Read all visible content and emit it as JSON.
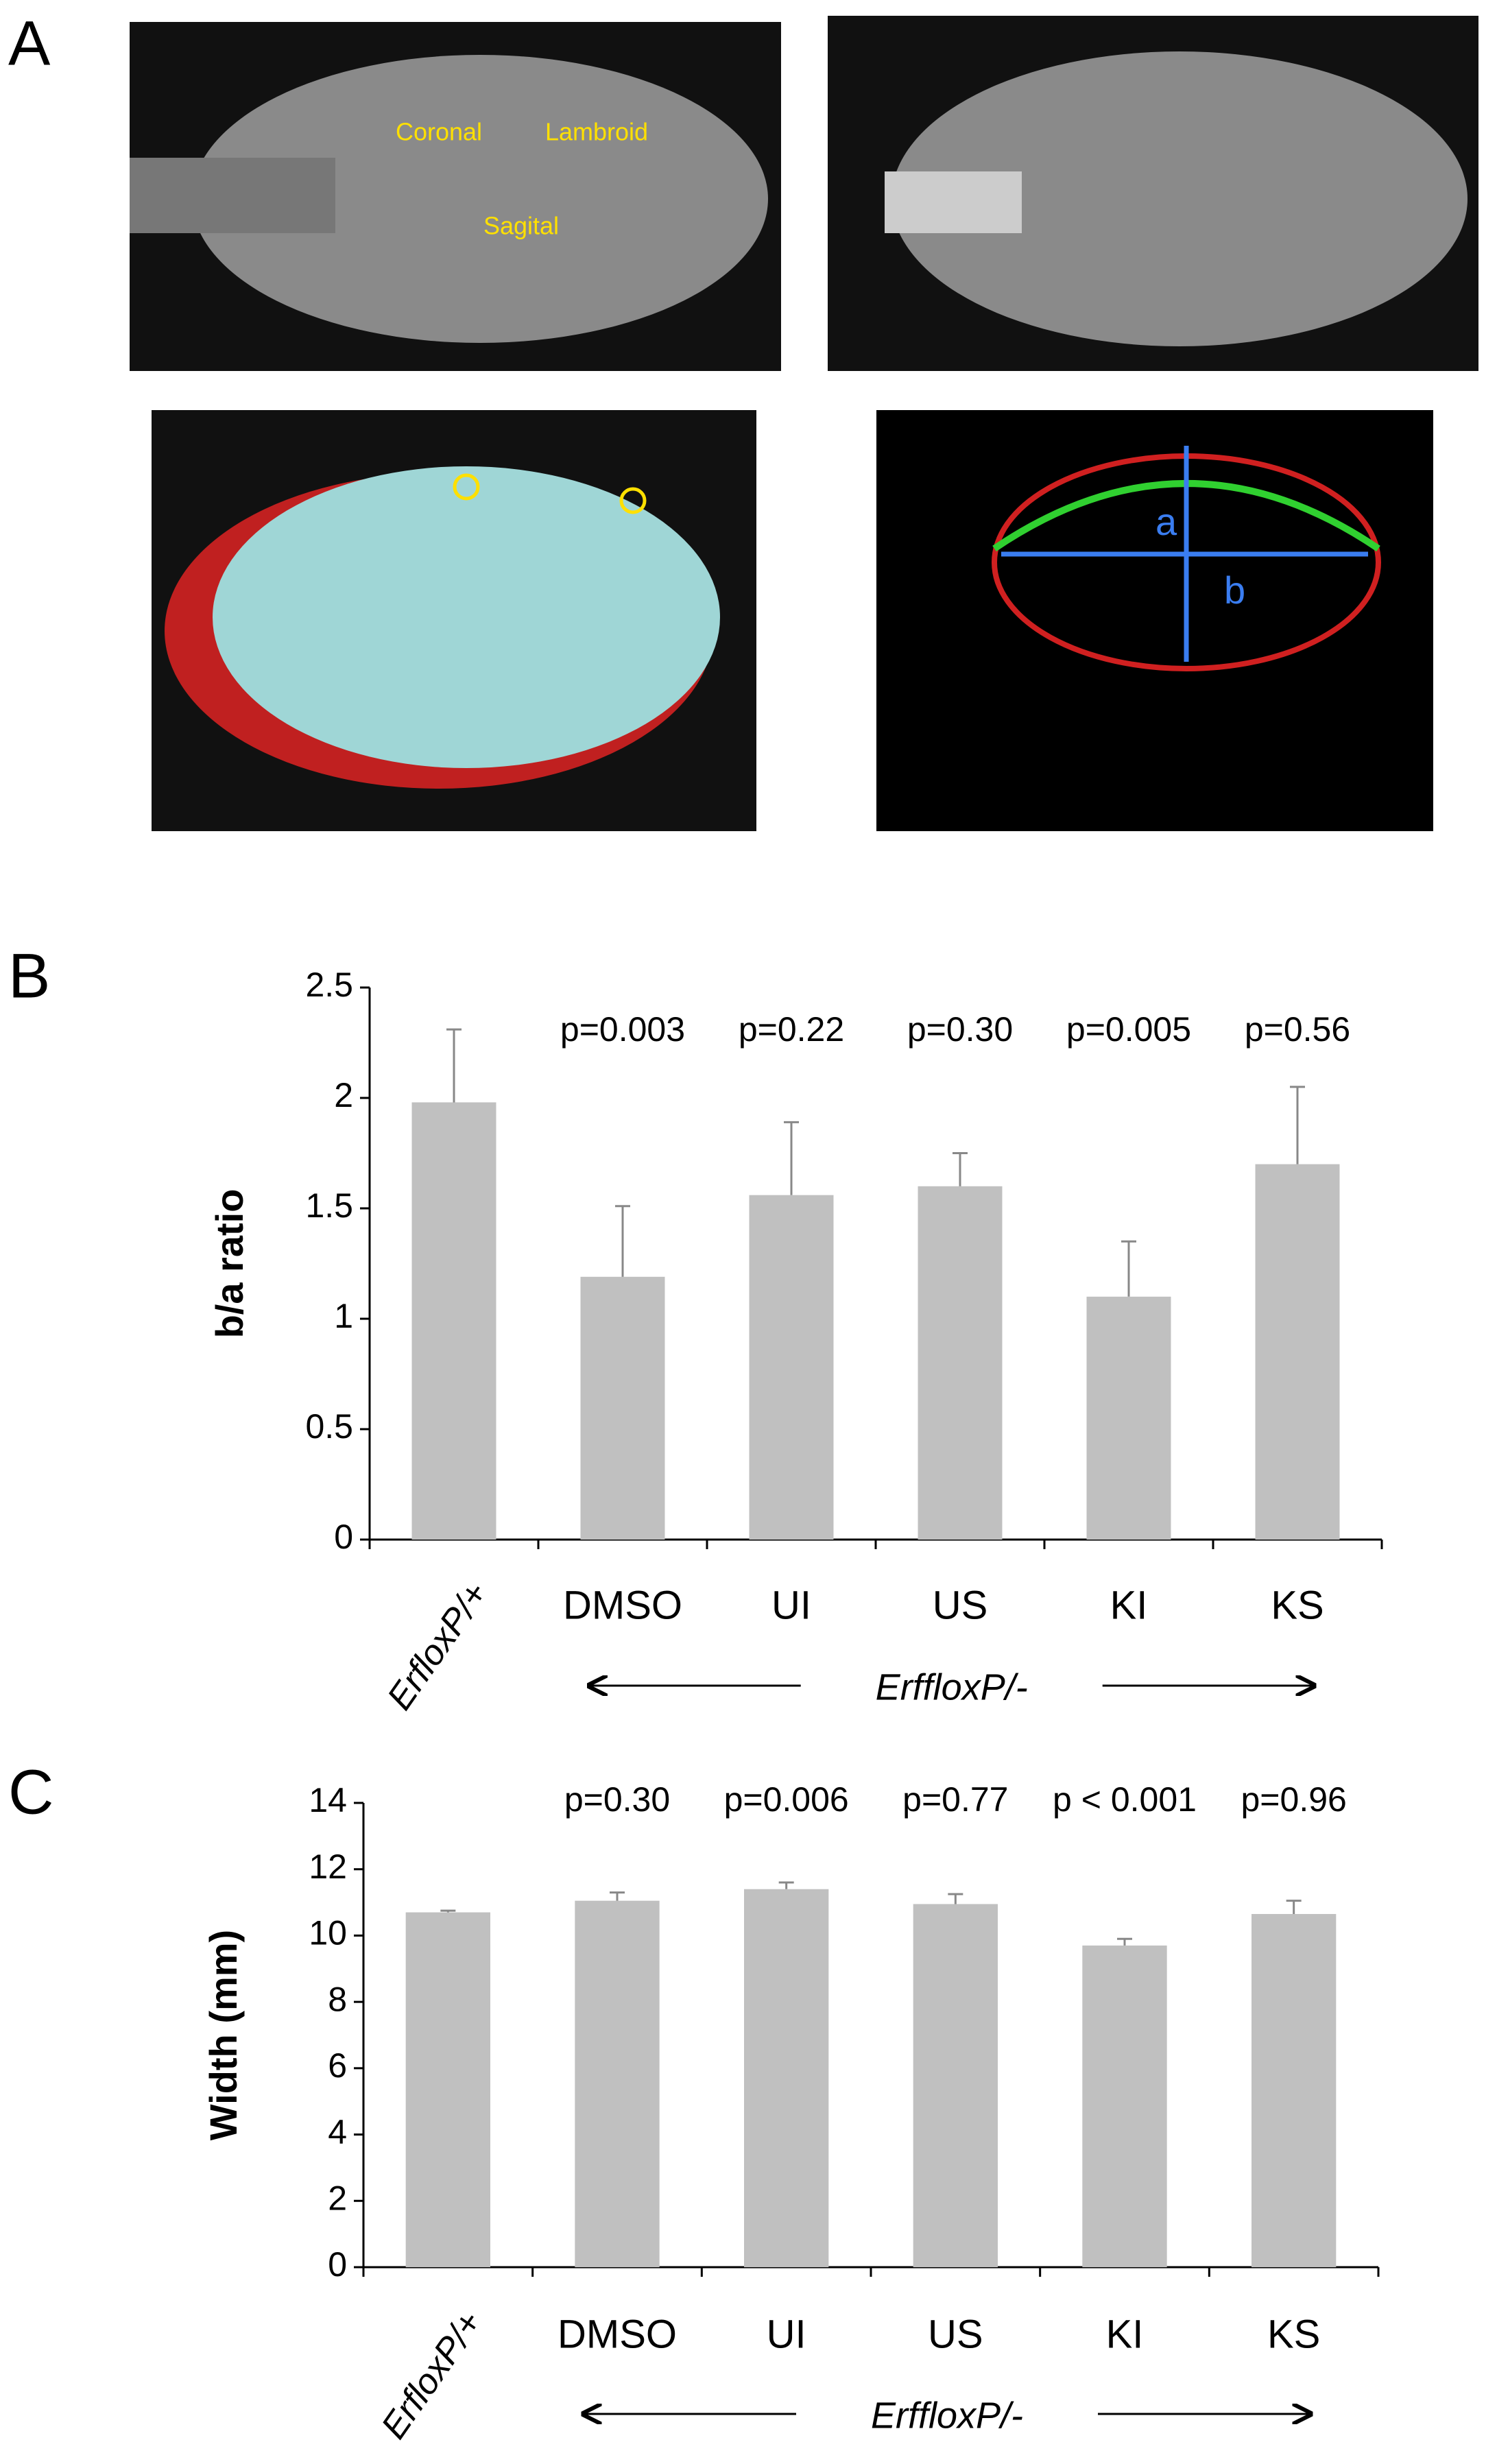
{
  "panel_labels": [
    "A",
    "B",
    "C"
  ],
  "images": {
    "dorsal_labels": [
      "Coronal",
      "Lambroid",
      "Sagital"
    ],
    "section_labels": [
      "a",
      "b"
    ]
  },
  "chart_data": [
    {
      "type": "bar",
      "y_label": "b/a ratio",
      "categories": [
        "ErfloxP/+",
        "DMSO",
        "UI",
        "US",
        "KI",
        "KS"
      ],
      "values": [
        1.98,
        1.19,
        1.56,
        1.6,
        1.1,
        1.7
      ],
      "errors": [
        0.33,
        0.32,
        0.33,
        0.15,
        0.25,
        0.35
      ],
      "annotations": [
        null,
        "p=0.003",
        "p=0.22",
        "p=0.30",
        "p=0.005",
        "p=0.56"
      ],
      "group_label": "ErffloxP/-",
      "color": "#c0c0c0",
      "ylim": [
        0,
        2.5
      ],
      "yticks": [
        0,
        0.5,
        1,
        1.5,
        2,
        2.5
      ]
    },
    {
      "type": "bar",
      "y_label": "Width (mm)",
      "categories": [
        "ErfloxP/+",
        "DMSO",
        "UI",
        "US",
        "KI",
        "KS"
      ],
      "values": [
        10.7,
        11.05,
        11.4,
        10.95,
        9.7,
        10.65
      ],
      "errors": [
        0.05,
        0.25,
        0.2,
        0.3,
        0.2,
        0.4
      ],
      "annotations": [
        null,
        "p=0.30",
        "p=0.006",
        "p=0.77",
        "p < 0.001",
        "p=0.96"
      ],
      "group_label": "ErffloxP/-",
      "color": "#c0c0c0",
      "ylim": [
        0,
        14
      ],
      "yticks": [
        0,
        2,
        4,
        6,
        8,
        10,
        12,
        14
      ]
    }
  ]
}
